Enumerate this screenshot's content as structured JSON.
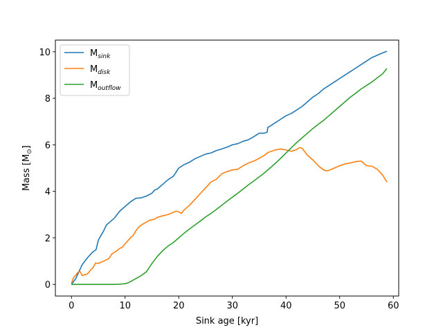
{
  "chart_data": {
    "type": "line",
    "xlabel": "Sink age [kyr]",
    "ylabel": "Mass [M",
    "ylabel_sub": "⊙",
    "ylabel_end": "]",
    "xlim": [
      -3,
      61
    ],
    "ylim": [
      -0.5,
      10.5
    ],
    "x_ticks": [
      0,
      10,
      20,
      30,
      40,
      50,
      60
    ],
    "y_ticks": [
      0,
      2,
      4,
      6,
      8,
      10
    ],
    "grid": false,
    "legend_position": "top-left",
    "series": [
      {
        "name_base": "M",
        "name_sub": "sink",
        "color": "#1f77b4",
        "points": [
          [
            0,
            0
          ],
          [
            0.8,
            0.25
          ],
          [
            1.5,
            0.6
          ],
          [
            2,
            0.85
          ],
          [
            3,
            1.15
          ],
          [
            4,
            1.4
          ],
          [
            4.6,
            1.5
          ],
          [
            5,
            1.9
          ],
          [
            6,
            2.3
          ],
          [
            6.5,
            2.55
          ],
          [
            7,
            2.65
          ],
          [
            8,
            2.85
          ],
          [
            8.5,
            3.0
          ],
          [
            9,
            3.15
          ],
          [
            10,
            3.35
          ],
          [
            11,
            3.55
          ],
          [
            12,
            3.7
          ],
          [
            13,
            3.72
          ],
          [
            14,
            3.8
          ],
          [
            15,
            3.92
          ],
          [
            15.5,
            4.05
          ],
          [
            16,
            4.1
          ],
          [
            17,
            4.3
          ],
          [
            18,
            4.5
          ],
          [
            19,
            4.65
          ],
          [
            20,
            5.0
          ],
          [
            21,
            5.15
          ],
          [
            22,
            5.25
          ],
          [
            23,
            5.4
          ],
          [
            24,
            5.5
          ],
          [
            25,
            5.6
          ],
          [
            26,
            5.65
          ],
          [
            27,
            5.75
          ],
          [
            28,
            5.82
          ],
          [
            29,
            5.9
          ],
          [
            30,
            6.0
          ],
          [
            31,
            6.05
          ],
          [
            32,
            6.15
          ],
          [
            33,
            6.22
          ],
          [
            34,
            6.35
          ],
          [
            35,
            6.5
          ],
          [
            36,
            6.5
          ],
          [
            36.5,
            6.55
          ],
          [
            36.6,
            6.75
          ],
          [
            37,
            6.8
          ],
          [
            38,
            6.95
          ],
          [
            39,
            7.1
          ],
          [
            40,
            7.25
          ],
          [
            41,
            7.35
          ],
          [
            42,
            7.5
          ],
          [
            43,
            7.65
          ],
          [
            44,
            7.85
          ],
          [
            45,
            8.05
          ],
          [
            46,
            8.2
          ],
          [
            47,
            8.4
          ],
          [
            48,
            8.55
          ],
          [
            49,
            8.7
          ],
          [
            50,
            8.85
          ],
          [
            51,
            9.0
          ],
          [
            52,
            9.15
          ],
          [
            53,
            9.3
          ],
          [
            54,
            9.45
          ],
          [
            55,
            9.6
          ],
          [
            56,
            9.75
          ],
          [
            57,
            9.85
          ],
          [
            58,
            9.95
          ],
          [
            58.8,
            10.02
          ]
        ]
      },
      {
        "name_base": "M",
        "name_sub": "disk",
        "color": "#ff7f0e",
        "points": [
          [
            0,
            0.05
          ],
          [
            0.4,
            0.3
          ],
          [
            0.8,
            0.4
          ],
          [
            1.2,
            0.52
          ],
          [
            1.6,
            0.55
          ],
          [
            2,
            0.38
          ],
          [
            2.5,
            0.42
          ],
          [
            3,
            0.45
          ],
          [
            3.5,
            0.6
          ],
          [
            4,
            0.72
          ],
          [
            4.5,
            0.92
          ],
          [
            5,
            0.9
          ],
          [
            5.5,
            0.95
          ],
          [
            6,
            1.0
          ],
          [
            6.5,
            1.05
          ],
          [
            7,
            1.12
          ],
          [
            7.5,
            1.3
          ],
          [
            8,
            1.38
          ],
          [
            8.5,
            1.45
          ],
          [
            9,
            1.55
          ],
          [
            9.5,
            1.6
          ],
          [
            10,
            1.75
          ],
          [
            11,
            2.0
          ],
          [
            11.5,
            2.1
          ],
          [
            12,
            2.3
          ],
          [
            12.5,
            2.45
          ],
          [
            13,
            2.55
          ],
          [
            13.5,
            2.62
          ],
          [
            14,
            2.68
          ],
          [
            14.5,
            2.75
          ],
          [
            15,
            2.78
          ],
          [
            15.5,
            2.8
          ],
          [
            16,
            2.88
          ],
          [
            17,
            2.95
          ],
          [
            18,
            3.0
          ],
          [
            19,
            3.1
          ],
          [
            19.5,
            3.15
          ],
          [
            20,
            3.12
          ],
          [
            20.5,
            3.05
          ],
          [
            21,
            3.2
          ],
          [
            22,
            3.4
          ],
          [
            23,
            3.65
          ],
          [
            24,
            3.9
          ],
          [
            25,
            4.15
          ],
          [
            26,
            4.4
          ],
          [
            27,
            4.52
          ],
          [
            28,
            4.75
          ],
          [
            29,
            4.85
          ],
          [
            30,
            4.92
          ],
          [
            31,
            4.95
          ],
          [
            32,
            5.1
          ],
          [
            33,
            5.22
          ],
          [
            34,
            5.3
          ],
          [
            35,
            5.42
          ],
          [
            36,
            5.55
          ],
          [
            36.5,
            5.65
          ],
          [
            37,
            5.7
          ],
          [
            38,
            5.78
          ],
          [
            39,
            5.82
          ],
          [
            40,
            5.78
          ],
          [
            41,
            5.72
          ],
          [
            42,
            5.8
          ],
          [
            42.5,
            5.88
          ],
          [
            43,
            5.85
          ],
          [
            43.5,
            5.7
          ],
          [
            44,
            5.55
          ],
          [
            45,
            5.35
          ],
          [
            46,
            5.1
          ],
          [
            47,
            4.92
          ],
          [
            47.5,
            4.88
          ],
          [
            48,
            4.9
          ],
          [
            49,
            5.0
          ],
          [
            50,
            5.1
          ],
          [
            51,
            5.18
          ],
          [
            52,
            5.22
          ],
          [
            53,
            5.28
          ],
          [
            54,
            5.3
          ],
          [
            55,
            5.1
          ],
          [
            56,
            5.08
          ],
          [
            57,
            4.95
          ],
          [
            58,
            4.7
          ],
          [
            58.8,
            4.4
          ]
        ]
      },
      {
        "name_base": "M",
        "name_sub": "outflow",
        "color": "#2ca02c",
        "points": [
          [
            0,
            0
          ],
          [
            2,
            0
          ],
          [
            4,
            0
          ],
          [
            6,
            0
          ],
          [
            8,
            0
          ],
          [
            9,
            0.01
          ],
          [
            10,
            0.03
          ],
          [
            10.5,
            0.06
          ],
          [
            11,
            0.12
          ],
          [
            12,
            0.25
          ],
          [
            13,
            0.38
          ],
          [
            14,
            0.55
          ],
          [
            15,
            0.9
          ],
          [
            16,
            1.2
          ],
          [
            17,
            1.45
          ],
          [
            18,
            1.65
          ],
          [
            19,
            1.8
          ],
          [
            20,
            2.0
          ],
          [
            21,
            2.2
          ],
          [
            22,
            2.38
          ],
          [
            23,
            2.55
          ],
          [
            24,
            2.72
          ],
          [
            25,
            2.9
          ],
          [
            26,
            3.05
          ],
          [
            27,
            3.22
          ],
          [
            28,
            3.4
          ],
          [
            29,
            3.58
          ],
          [
            30,
            3.75
          ],
          [
            31,
            3.92
          ],
          [
            32,
            4.1
          ],
          [
            33,
            4.28
          ],
          [
            34,
            4.45
          ],
          [
            35,
            4.62
          ],
          [
            36,
            4.8
          ],
          [
            37,
            5.0
          ],
          [
            38,
            5.2
          ],
          [
            39,
            5.42
          ],
          [
            40,
            5.65
          ],
          [
            41,
            5.88
          ],
          [
            42,
            6.1
          ],
          [
            43,
            6.3
          ],
          [
            44,
            6.5
          ],
          [
            45,
            6.7
          ],
          [
            46,
            6.88
          ],
          [
            47,
            7.05
          ],
          [
            48,
            7.25
          ],
          [
            49,
            7.45
          ],
          [
            50,
            7.65
          ],
          [
            51,
            7.85
          ],
          [
            52,
            8.05
          ],
          [
            53,
            8.22
          ],
          [
            54,
            8.4
          ],
          [
            55,
            8.55
          ],
          [
            56,
            8.7
          ],
          [
            57,
            8.88
          ],
          [
            58,
            9.05
          ],
          [
            58.8,
            9.28
          ]
        ]
      }
    ]
  }
}
